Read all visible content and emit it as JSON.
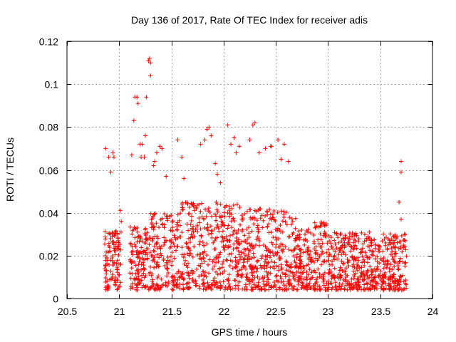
{
  "chart_data": {
    "type": "scatter",
    "title": "Day 136 of 2017, Rate Of TEC Index for receiver adis",
    "xlabel": "GPS time / hours",
    "ylabel": "ROTI / TECUs",
    "xlim": [
      20.5,
      24
    ],
    "ylim": [
      0,
      0.12
    ],
    "xticks": [
      20.5,
      21,
      21.5,
      22,
      22.5,
      23,
      23.5,
      24
    ],
    "xtick_labels": [
      "20.5",
      "21",
      "21.5",
      "22",
      "22.5",
      "23",
      "23.5",
      "24"
    ],
    "yticks": [
      0,
      0.02,
      0.04,
      0.06,
      0.08,
      0.1,
      0.12
    ],
    "ytick_labels": [
      "0",
      "0.02",
      "0.04",
      "0.06",
      "0.08",
      "0.1",
      "0.12"
    ],
    "grid": true,
    "marker": "+",
    "color": "#ff0000",
    "series": [
      {
        "name": "adis",
        "x_range": [
          20.86,
          23.75
        ],
        "points": [
          [
            20.87,
            0.07
          ],
          [
            20.9,
            0.066
          ],
          [
            20.92,
            0.059
          ],
          [
            20.94,
            0.068
          ],
          [
            20.95,
            0.066
          ],
          [
            20.92,
            0.03
          ],
          [
            20.96,
            0.031
          ],
          [
            21.01,
            0.041
          ],
          [
            21.02,
            0.036
          ],
          [
            21.12,
            0.067
          ],
          [
            21.14,
            0.083
          ],
          [
            21.15,
            0.094
          ],
          [
            21.17,
            0.094
          ],
          [
            21.18,
            0.091
          ],
          [
            21.2,
            0.072
          ],
          [
            21.21,
            0.066
          ],
          [
            21.22,
            0.072
          ],
          [
            21.24,
            0.066
          ],
          [
            21.25,
            0.076
          ],
          [
            21.26,
            0.094
          ],
          [
            21.28,
            0.111
          ],
          [
            21.29,
            0.112
          ],
          [
            21.3,
            0.11
          ],
          [
            21.3,
            0.104
          ],
          [
            21.33,
            0.062
          ],
          [
            21.34,
            0.064
          ],
          [
            21.36,
            0.068
          ],
          [
            21.39,
            0.071
          ],
          [
            21.41,
            0.07
          ],
          [
            21.45,
            0.057
          ],
          [
            21.56,
            0.074
          ],
          [
            21.6,
            0.066
          ],
          [
            21.62,
            0.056
          ],
          [
            21.78,
            0.072
          ],
          [
            21.82,
            0.074
          ],
          [
            21.84,
            0.079
          ],
          [
            21.86,
            0.08
          ],
          [
            21.88,
            0.076
          ],
          [
            21.92,
            0.063
          ],
          [
            21.94,
            0.058
          ],
          [
            21.97,
            0.054
          ],
          [
            22.04,
            0.081
          ],
          [
            22.07,
            0.072
          ],
          [
            22.1,
            0.075
          ],
          [
            22.12,
            0.068
          ],
          [
            22.15,
            0.071
          ],
          [
            22.25,
            0.074
          ],
          [
            22.28,
            0.081
          ],
          [
            22.3,
            0.082
          ],
          [
            22.34,
            0.068
          ],
          [
            22.4,
            0.07
          ],
          [
            22.45,
            0.071
          ],
          [
            22.46,
            0.071
          ],
          [
            22.52,
            0.074
          ],
          [
            22.55,
            0.065
          ],
          [
            22.58,
            0.072
          ],
          [
            22.62,
            0.064
          ],
          [
            23.7,
            0.064
          ],
          [
            23.7,
            0.059
          ],
          [
            23.68,
            0.045
          ],
          [
            23.7,
            0.037
          ]
        ]
      }
    ]
  }
}
